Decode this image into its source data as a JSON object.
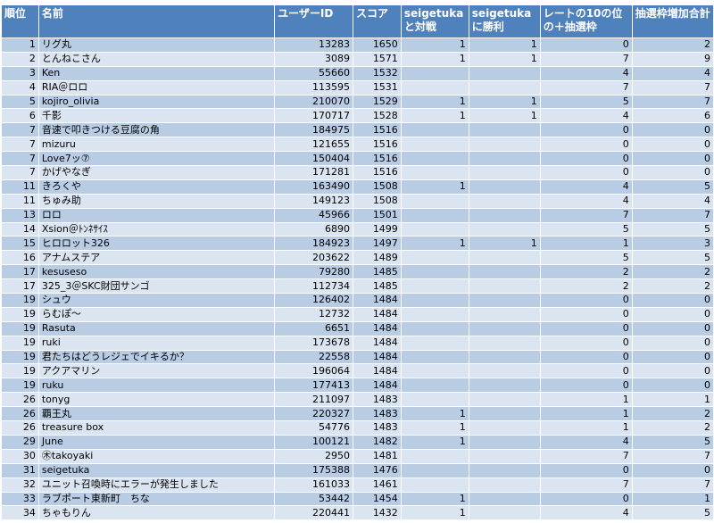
{
  "headers": {
    "rank": "順位",
    "name": "名前",
    "user_id": "ユーザーID",
    "score": "スコア",
    "match": "seigetuka と対戦",
    "win": "seigetuka に勝利",
    "rate": "レートの10の位の＋抽選枠",
    "total": "抽選枠増加合計"
  },
  "rows": [
    {
      "rank": "1",
      "name": "リグ丸",
      "user_id": "13283",
      "score": "1650",
      "match": "1",
      "win": "1",
      "rate": "0",
      "total": "2"
    },
    {
      "rank": "2",
      "name": "とんねこさん",
      "user_id": "3089",
      "score": "1571",
      "match": "1",
      "win": "1",
      "rate": "7",
      "total": "9"
    },
    {
      "rank": "3",
      "name": "Ken",
      "user_id": "55660",
      "score": "1532",
      "match": "",
      "win": "",
      "rate": "4",
      "total": "4"
    },
    {
      "rank": "4",
      "name": "RIA＠ロロ",
      "user_id": "113595",
      "score": "1531",
      "match": "",
      "win": "",
      "rate": "7",
      "total": "7"
    },
    {
      "rank": "5",
      "name": "kojiro_olivia",
      "user_id": "210070",
      "score": "1529",
      "match": "1",
      "win": "1",
      "rate": "5",
      "total": "7"
    },
    {
      "rank": "6",
      "name": "千影",
      "user_id": "170717",
      "score": "1528",
      "match": "1",
      "win": "1",
      "rate": "4",
      "total": "6"
    },
    {
      "rank": "7",
      "name": "音速で叩きつける豆腐の角",
      "user_id": "184975",
      "score": "1516",
      "match": "",
      "win": "",
      "rate": "0",
      "total": "0"
    },
    {
      "rank": "7",
      "name": "mizuru",
      "user_id": "121655",
      "score": "1516",
      "match": "",
      "win": "",
      "rate": "0",
      "total": "0"
    },
    {
      "rank": "7",
      "name": "Love7ッ⑦",
      "user_id": "150404",
      "score": "1516",
      "match": "",
      "win": "",
      "rate": "0",
      "total": "0"
    },
    {
      "rank": "7",
      "name": "かげやなぎ",
      "user_id": "171281",
      "score": "1516",
      "match": "",
      "win": "",
      "rate": "0",
      "total": "0"
    },
    {
      "rank": "11",
      "name": "きろくや",
      "user_id": "163490",
      "score": "1508",
      "match": "1",
      "win": "",
      "rate": "4",
      "total": "5"
    },
    {
      "rank": "11",
      "name": "ちゅみ助",
      "user_id": "149123",
      "score": "1508",
      "match": "",
      "win": "",
      "rate": "4",
      "total": "4"
    },
    {
      "rank": "13",
      "name": "ロロ",
      "user_id": "45966",
      "score": "1501",
      "match": "",
      "win": "",
      "rate": "7",
      "total": "7"
    },
    {
      "rank": "14",
      "name": "Xsion＠ﾄﾝﾈｻｲｽ",
      "user_id": "6890",
      "score": "1499",
      "match": "",
      "win": "",
      "rate": "5",
      "total": "5"
    },
    {
      "rank": "15",
      "name": "ヒロロット326",
      "user_id": "184923",
      "score": "1497",
      "match": "1",
      "win": "1",
      "rate": "1",
      "total": "3"
    },
    {
      "rank": "16",
      "name": "アナムステア",
      "user_id": "203622",
      "score": "1489",
      "match": "",
      "win": "",
      "rate": "5",
      "total": "5"
    },
    {
      "rank": "17",
      "name": "kesuseso",
      "user_id": "79280",
      "score": "1485",
      "match": "",
      "win": "",
      "rate": "2",
      "total": "2"
    },
    {
      "rank": "17",
      "name": "325_3＠SKC財団サンゴ",
      "user_id": "112734",
      "score": "1485",
      "match": "",
      "win": "",
      "rate": "2",
      "total": "2"
    },
    {
      "rank": "19",
      "name": "シュウ",
      "user_id": "126402",
      "score": "1484",
      "match": "",
      "win": "",
      "rate": "0",
      "total": "0"
    },
    {
      "rank": "19",
      "name": "らむぽ～",
      "user_id": "12732",
      "score": "1484",
      "match": "",
      "win": "",
      "rate": "0",
      "total": "0"
    },
    {
      "rank": "19",
      "name": "Rasuta",
      "user_id": "6651",
      "score": "1484",
      "match": "",
      "win": "",
      "rate": "0",
      "total": "0"
    },
    {
      "rank": "19",
      "name": "ruki",
      "user_id": "173678",
      "score": "1484",
      "match": "",
      "win": "",
      "rate": "0",
      "total": "0"
    },
    {
      "rank": "19",
      "name": "君たちはどうレジェでイキるか？",
      "user_id": "22558",
      "score": "1484",
      "match": "",
      "win": "",
      "rate": "0",
      "total": "0"
    },
    {
      "rank": "19",
      "name": "アクアマリン",
      "user_id": "196064",
      "score": "1484",
      "match": "",
      "win": "",
      "rate": "0",
      "total": "0"
    },
    {
      "rank": "19",
      "name": "ruku",
      "user_id": "177413",
      "score": "1484",
      "match": "",
      "win": "",
      "rate": "0",
      "total": "0"
    },
    {
      "rank": "26",
      "name": "tonyg",
      "user_id": "211097",
      "score": "1483",
      "match": "",
      "win": "",
      "rate": "1",
      "total": "1"
    },
    {
      "rank": "26",
      "name": "覇王丸",
      "user_id": "220327",
      "score": "1483",
      "match": "1",
      "win": "",
      "rate": "1",
      "total": "2"
    },
    {
      "rank": "26",
      "name": "treasure box",
      "user_id": "54776",
      "score": "1483",
      "match": "1",
      "win": "",
      "rate": "1",
      "total": "2"
    },
    {
      "rank": "29",
      "name": "June",
      "user_id": "100121",
      "score": "1482",
      "match": "1",
      "win": "",
      "rate": "4",
      "total": "5"
    },
    {
      "rank": "30",
      "name": "㊍takoyaki",
      "user_id": "2950",
      "score": "1481",
      "match": "",
      "win": "",
      "rate": "7",
      "total": "7"
    },
    {
      "rank": "31",
      "name": "seigetuka",
      "user_id": "175388",
      "score": "1476",
      "match": "",
      "win": "",
      "rate": "0",
      "total": "0"
    },
    {
      "rank": "32",
      "name": "ユニット召喚時にエラーが発生しました",
      "user_id": "161033",
      "score": "1461",
      "match": "",
      "win": "",
      "rate": "7",
      "total": "7"
    },
    {
      "rank": "33",
      "name": "ラブポート東新町　ちな",
      "user_id": "53442",
      "score": "1454",
      "match": "1",
      "win": "",
      "rate": "0",
      "total": "1"
    },
    {
      "rank": "34",
      "name": "ちゃもりん",
      "user_id": "220441",
      "score": "1432",
      "match": "1",
      "win": "",
      "rate": "4",
      "total": "5"
    }
  ]
}
